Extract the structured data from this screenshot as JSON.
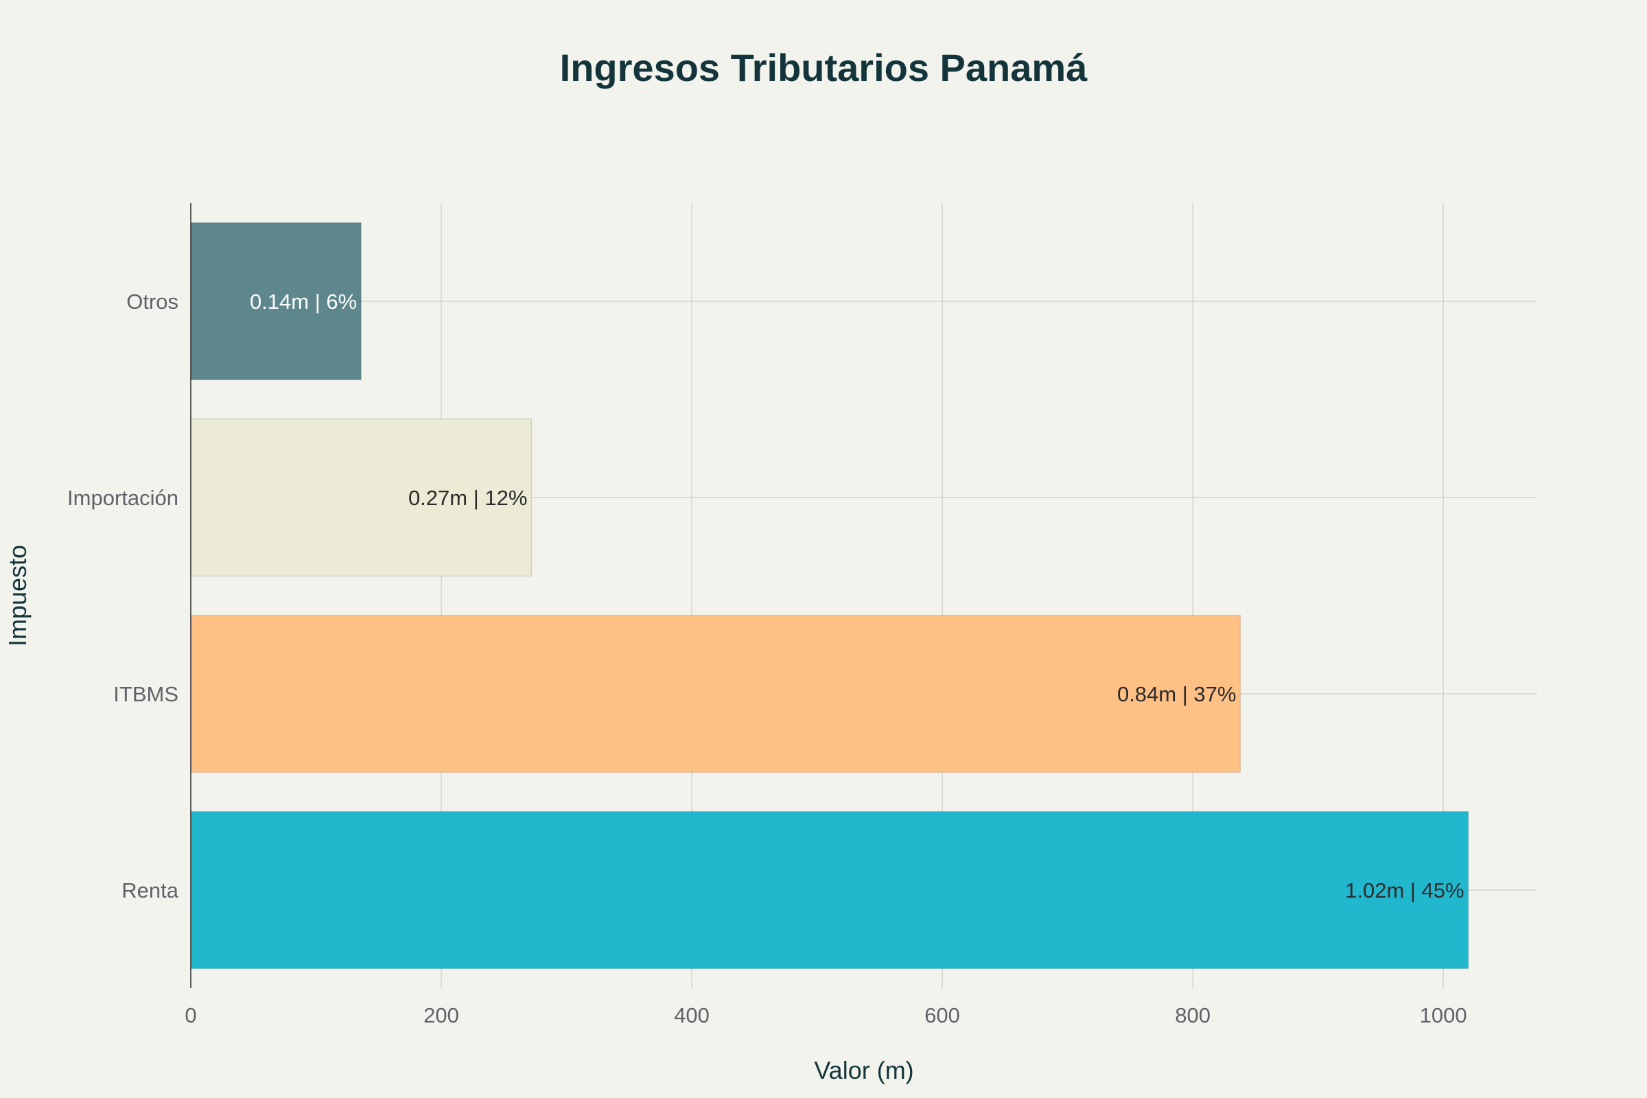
{
  "chart_data": {
    "type": "bar",
    "orientation": "horizontal",
    "title": "Ingresos Tributarios Panamá",
    "xlabel": "Valor (m)",
    "ylabel": "Impuesto",
    "categories": [
      "Renta",
      "ITBMS",
      "Importación",
      "Otros"
    ],
    "values": [
      1020,
      838,
      272,
      136
    ],
    "data_labels": [
      "1.02m | 45%",
      "0.84m | 37%",
      "0.27m | 12%",
      "0.14m | 6%"
    ],
    "bar_colors": [
      "#21b8ce",
      "#ffc085",
      "#ecebd5",
      "#5e878d"
    ],
    "label_colors": [
      "#2b2b2b",
      "#2b2b2b",
      "#2b2b2b",
      "#ffffff"
    ],
    "xlim": [
      0,
      1075
    ],
    "xticks": [
      0,
      200,
      400,
      600,
      800,
      1000
    ],
    "xtick_labels": [
      "0",
      "200",
      "400",
      "600",
      "800",
      "1000"
    ],
    "grid": true,
    "legend": "none"
  }
}
